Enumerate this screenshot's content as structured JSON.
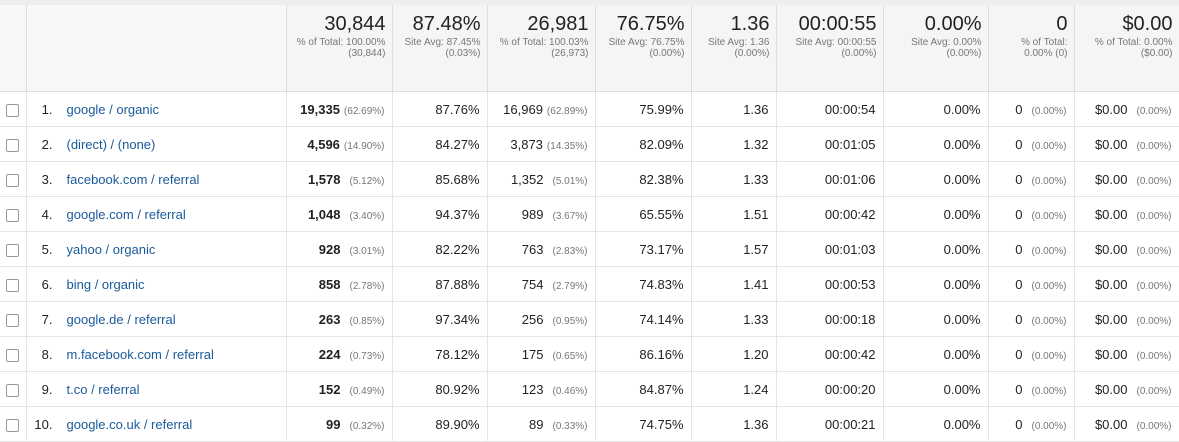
{
  "totals": {
    "sessions": {
      "value": "30,844",
      "sub": "% of Total: 100.00% (30,844)"
    },
    "new_sessions": {
      "value": "87.48%",
      "sub": "Site Avg: 87.45% (0.03%)"
    },
    "new_users": {
      "value": "26,981",
      "sub": "% of Total: 100.03% (26,973)"
    },
    "bounce_rate": {
      "value": "76.75%",
      "sub": "Site Avg: 76.75% (0.00%)"
    },
    "pages_session": {
      "value": "1.36",
      "sub": "Site Avg: 1.36 (0.00%)"
    },
    "avg_duration": {
      "value": "00:00:55",
      "sub": "Site Avg: 00:00:55 (0.00%)"
    },
    "conv_rate": {
      "value": "0.00%",
      "sub": "Site Avg: 0.00% (0.00%)"
    },
    "goal_completions": {
      "value": "0",
      "sub": "% of Total: 0.00% (0)"
    },
    "goal_value": {
      "value": "$0.00",
      "sub": "% of Total: 0.00% ($0.00)"
    }
  },
  "rows": [
    {
      "num": "1.",
      "dim": "google / organic",
      "sessions": "19,335",
      "sessions_pct": "(62.69%)",
      "new_sessions": "87.76%",
      "new_users": "16,969",
      "new_users_pct": "(62.89%)",
      "bounce": "75.99%",
      "pps": "1.36",
      "duration": "00:00:54",
      "conv": "0.00%",
      "goal": "0",
      "goal_pct": "(0.00%)",
      "value": "$0.00",
      "value_pct": "(0.00%)"
    },
    {
      "num": "2.",
      "dim": "(direct) / (none)",
      "sessions": "4,596",
      "sessions_pct": "(14.90%)",
      "new_sessions": "84.27%",
      "new_users": "3,873",
      "new_users_pct": "(14.35%)",
      "bounce": "82.09%",
      "pps": "1.32",
      "duration": "00:01:05",
      "conv": "0.00%",
      "goal": "0",
      "goal_pct": "(0.00%)",
      "value": "$0.00",
      "value_pct": "(0.00%)"
    },
    {
      "num": "3.",
      "dim": "facebook.com / referral",
      "sessions": "1,578",
      "sessions_pct": "(5.12%)",
      "new_sessions": "85.68%",
      "new_users": "1,352",
      "new_users_pct": "(5.01%)",
      "bounce": "82.38%",
      "pps": "1.33",
      "duration": "00:01:06",
      "conv": "0.00%",
      "goal": "0",
      "goal_pct": "(0.00%)",
      "value": "$0.00",
      "value_pct": "(0.00%)"
    },
    {
      "num": "4.",
      "dim": "google.com / referral",
      "sessions": "1,048",
      "sessions_pct": "(3.40%)",
      "new_sessions": "94.37%",
      "new_users": "989",
      "new_users_pct": "(3.67%)",
      "bounce": "65.55%",
      "pps": "1.51",
      "duration": "00:00:42",
      "conv": "0.00%",
      "goal": "0",
      "goal_pct": "(0.00%)",
      "value": "$0.00",
      "value_pct": "(0.00%)"
    },
    {
      "num": "5.",
      "dim": "yahoo / organic",
      "sessions": "928",
      "sessions_pct": "(3.01%)",
      "new_sessions": "82.22%",
      "new_users": "763",
      "new_users_pct": "(2.83%)",
      "bounce": "73.17%",
      "pps": "1.57",
      "duration": "00:01:03",
      "conv": "0.00%",
      "goal": "0",
      "goal_pct": "(0.00%)",
      "value": "$0.00",
      "value_pct": "(0.00%)"
    },
    {
      "num": "6.",
      "dim": "bing / organic",
      "sessions": "858",
      "sessions_pct": "(2.78%)",
      "new_sessions": "87.88%",
      "new_users": "754",
      "new_users_pct": "(2.79%)",
      "bounce": "74.83%",
      "pps": "1.41",
      "duration": "00:00:53",
      "conv": "0.00%",
      "goal": "0",
      "goal_pct": "(0.00%)",
      "value": "$0.00",
      "value_pct": "(0.00%)"
    },
    {
      "num": "7.",
      "dim": "google.de / referral",
      "sessions": "263",
      "sessions_pct": "(0.85%)",
      "new_sessions": "97.34%",
      "new_users": "256",
      "new_users_pct": "(0.95%)",
      "bounce": "74.14%",
      "pps": "1.33",
      "duration": "00:00:18",
      "conv": "0.00%",
      "goal": "0",
      "goal_pct": "(0.00%)",
      "value": "$0.00",
      "value_pct": "(0.00%)"
    },
    {
      "num": "8.",
      "dim": "m.facebook.com / referral",
      "sessions": "224",
      "sessions_pct": "(0.73%)",
      "new_sessions": "78.12%",
      "new_users": "175",
      "new_users_pct": "(0.65%)",
      "bounce": "86.16%",
      "pps": "1.20",
      "duration": "00:00:42",
      "conv": "0.00%",
      "goal": "0",
      "goal_pct": "(0.00%)",
      "value": "$0.00",
      "value_pct": "(0.00%)"
    },
    {
      "num": "9.",
      "dim": "t.co / referral",
      "sessions": "152",
      "sessions_pct": "(0.49%)",
      "new_sessions": "80.92%",
      "new_users": "123",
      "new_users_pct": "(0.46%)",
      "bounce": "84.87%",
      "pps": "1.24",
      "duration": "00:00:20",
      "conv": "0.00%",
      "goal": "0",
      "goal_pct": "(0.00%)",
      "value": "$0.00",
      "value_pct": "(0.00%)"
    },
    {
      "num": "10.",
      "dim": "google.co.uk / referral",
      "sessions": "99",
      "sessions_pct": "(0.32%)",
      "new_sessions": "89.90%",
      "new_users": "89",
      "new_users_pct": "(0.33%)",
      "bounce": "74.75%",
      "pps": "1.36",
      "duration": "00:00:21",
      "conv": "0.00%",
      "goal": "0",
      "goal_pct": "(0.00%)",
      "value": "$0.00",
      "value_pct": "(0.00%)"
    }
  ]
}
